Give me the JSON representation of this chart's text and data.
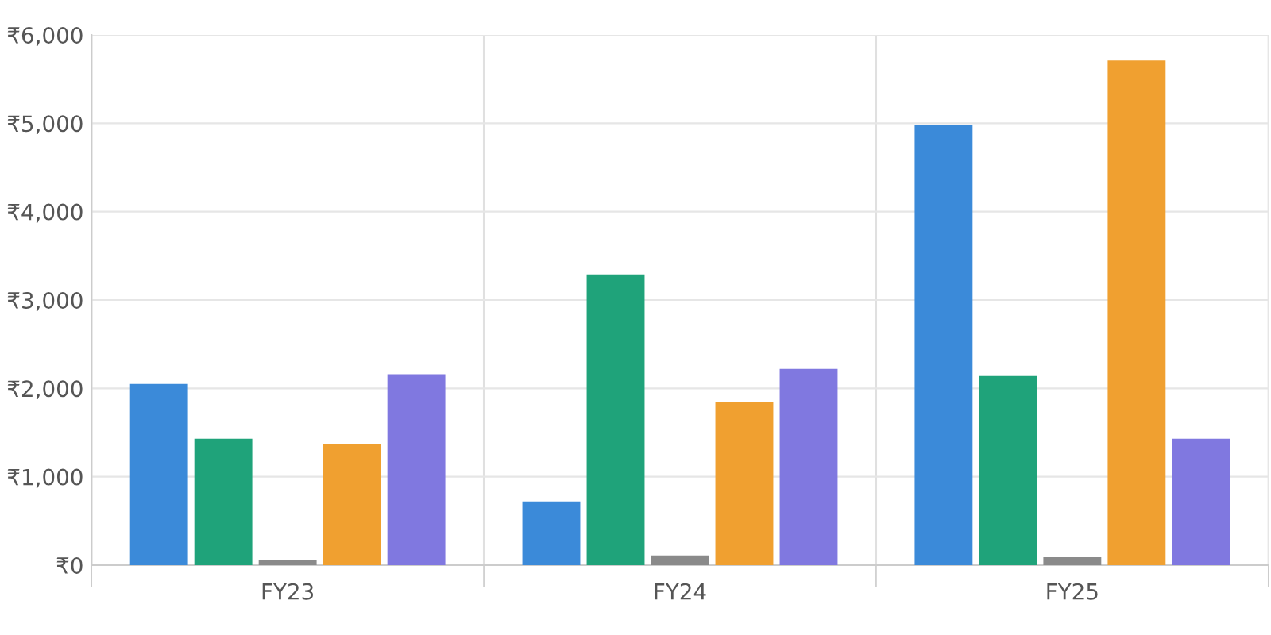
{
  "chart_data": {
    "type": "bar",
    "categories": [
      "FY23",
      "FY24",
      "FY25"
    ],
    "series": [
      {
        "color": "#3b8ad9",
        "values": [
          2050,
          720,
          4980
        ]
      },
      {
        "color": "#1fa37a",
        "values": [
          1430,
          3290,
          2140
        ]
      },
      {
        "color": "#8a8a8a",
        "values": [
          55,
          110,
          90
        ]
      },
      {
        "color": "#f0a030",
        "values": [
          1370,
          1850,
          5710
        ]
      },
      {
        "color": "#8078e0",
        "values": [
          2160,
          2220,
          1430
        ]
      }
    ],
    "ylim": [
      0,
      6000
    ],
    "yticks": [
      {
        "value": 0,
        "label": "₹0"
      },
      {
        "value": 1000,
        "label": "₹1,000"
      },
      {
        "value": 2000,
        "label": "₹2,000"
      },
      {
        "value": 3000,
        "label": "₹3,000"
      },
      {
        "value": 4000,
        "label": "₹4,000"
      },
      {
        "value": 5000,
        "label": "₹5,000"
      },
      {
        "value": 6000,
        "label": "₹6,000"
      }
    ],
    "grid": true
  }
}
